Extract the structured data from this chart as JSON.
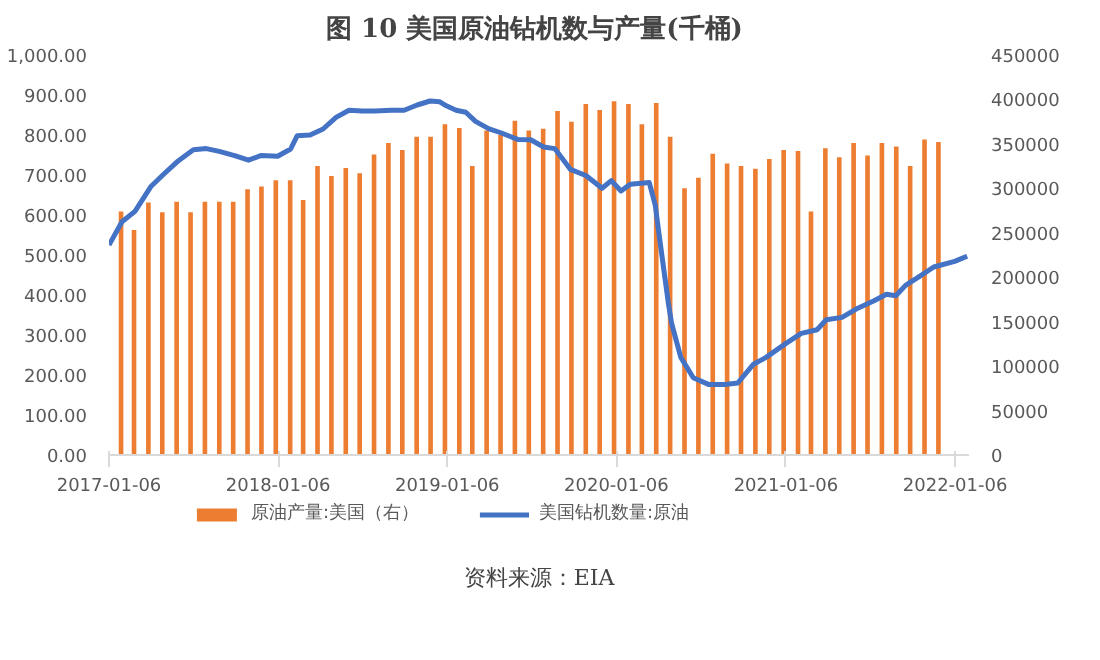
{
  "chart_data": {
    "type": "line",
    "title": "图 10  美国原油钻机数与产量(千桶)",
    "annotations": [
      "资料来源：EIA"
    ],
    "xlim": [
      "2017-01-06",
      "2022-02-05"
    ],
    "xticks": [
      "2017-01-06",
      "2018-01-06",
      "2019-01-06",
      "2020-01-06",
      "2021-01-06",
      "2022-01-06"
    ],
    "ylim": [
      0,
      1000
    ],
    "yticks": [
      {
        "value": 0,
        "label": "0.00"
      },
      {
        "value": 100,
        "label": "100.00"
      },
      {
        "value": 200,
        "label": "200.00"
      },
      {
        "value": 300,
        "label": "300.00"
      },
      {
        "value": 400,
        "label": "400.00"
      },
      {
        "value": 500,
        "label": "500.00"
      },
      {
        "value": 600,
        "label": "600.00"
      },
      {
        "value": 700,
        "label": "700.00"
      },
      {
        "value": 800,
        "label": "800.00"
      },
      {
        "value": 900,
        "label": "900.00"
      },
      {
        "value": 1000,
        "label": "1,000.00"
      }
    ],
    "y2lim": [
      0,
      450000
    ],
    "y2ticks": [
      0,
      50000,
      100000,
      150000,
      200000,
      250000,
      300000,
      350000,
      400000,
      450000
    ],
    "legend": "bottom",
    "grid": false,
    "series": [
      {
        "name": "原油产量:美国（右）",
        "type": "bar",
        "axis": "y2",
        "color": "#ed7d31",
        "x": [
          "2017-02",
          "2017-03",
          "2017-04",
          "2017-05",
          "2017-06",
          "2017-07",
          "2017-08",
          "2017-09",
          "2017-10",
          "2017-11",
          "2017-12",
          "2018-01",
          "2018-02",
          "2018-03",
          "2018-04",
          "2018-05",
          "2018-06",
          "2018-07",
          "2018-08",
          "2018-09",
          "2018-10",
          "2018-11",
          "2018-12",
          "2019-01",
          "2019-02",
          "2019-03",
          "2019-04",
          "2019-05",
          "2019-06",
          "2019-07",
          "2019-08",
          "2019-09",
          "2019-10",
          "2019-11",
          "2019-12",
          "2020-01",
          "2020-02",
          "2020-03",
          "2020-04",
          "2020-05",
          "2020-06",
          "2020-07",
          "2020-08",
          "2020-09",
          "2020-10",
          "2020-11",
          "2020-12",
          "2021-01",
          "2021-02",
          "2021-03",
          "2021-04",
          "2021-05",
          "2021-06",
          "2021-07",
          "2021-08",
          "2021-09",
          "2021-10",
          "2021-11",
          "2021-12"
        ],
        "values": [
          274000,
          253000,
          284000,
          273000,
          285000,
          273000,
          285000,
          285000,
          285000,
          299000,
          302000,
          309000,
          309000,
          287000,
          325000,
          314000,
          323000,
          317000,
          338000,
          351000,
          343000,
          358000,
          358000,
          372000,
          368000,
          325000,
          365000,
          360000,
          376000,
          365000,
          367000,
          387000,
          375000,
          395000,
          388000,
          398000,
          395000,
          372000,
          396000,
          358000,
          300000,
          312000,
          339000,
          328000,
          325000,
          322000,
          333000,
          343000,
          342000,
          274000,
          345000,
          335000,
          351000,
          337000,
          351000,
          347000,
          325000,
          355000,
          352000
        ]
      },
      {
        "name": "美国钻机数量:原油",
        "type": "line",
        "axis": "y",
        "color": "#4472c4",
        "x": [
          "2017-01-06",
          "2017-02-03",
          "2017-03-03",
          "2017-04-07",
          "2017-05-05",
          "2017-06-02",
          "2017-07-07",
          "2017-08-04",
          "2017-09-01",
          "2017-10-06",
          "2017-11-03",
          "2017-12-01",
          "2018-01-05",
          "2018-02-02",
          "2018-02-16",
          "2018-03-16",
          "2018-04-13",
          "2018-05-11",
          "2018-06-08",
          "2018-07-06",
          "2018-08-03",
          "2018-09-07",
          "2018-10-05",
          "2018-11-02",
          "2018-11-30",
          "2018-12-21",
          "2019-01-04",
          "2019-01-25",
          "2019-02-15",
          "2019-03-08",
          "2019-04-05",
          "2019-05-03",
          "2019-06-07",
          "2019-07-05",
          "2019-08-02",
          "2019-08-26",
          "2019-09-29",
          "2019-11-02",
          "2019-12-06",
          "2019-12-26",
          "2020-01-16",
          "2020-02-05",
          "2020-03-17",
          "2020-03-30",
          "2020-04-06",
          "2020-04-27",
          "2020-05-04",
          "2020-05-24",
          "2020-06-20",
          "2020-07-24",
          "2020-08-27",
          "2020-09-24",
          "2020-10-28",
          "2020-11-24",
          "2021-01-06",
          "2021-02-08",
          "2021-03-14",
          "2021-04-03",
          "2021-05-07",
          "2021-06-10",
          "2021-07-14",
          "2021-08-11",
          "2021-08-31",
          "2021-09-21",
          "2021-10-18",
          "2021-11-21",
          "2022-01-05",
          "2022-02-01"
        ],
        "values": [
          525,
          583,
          609,
          672,
          703,
          733,
          763,
          766,
          759,
          748,
          737,
          749,
          747,
          765,
          798,
          800,
          815,
          844,
          862,
          860,
          860,
          862,
          862,
          875,
          885,
          883,
          873,
          862,
          857,
          834,
          816,
          805,
          789,
          788,
          770,
          766,
          714,
          698,
          667,
          686,
          660,
          677,
          681,
          624,
          561,
          381,
          330,
          244,
          193,
          176,
          176,
          180,
          227,
          244,
          279,
          304,
          313,
          338,
          344,
          367,
          385,
          402,
          398,
          424,
          444,
          470,
          484,
          497
        ]
      }
    ]
  }
}
